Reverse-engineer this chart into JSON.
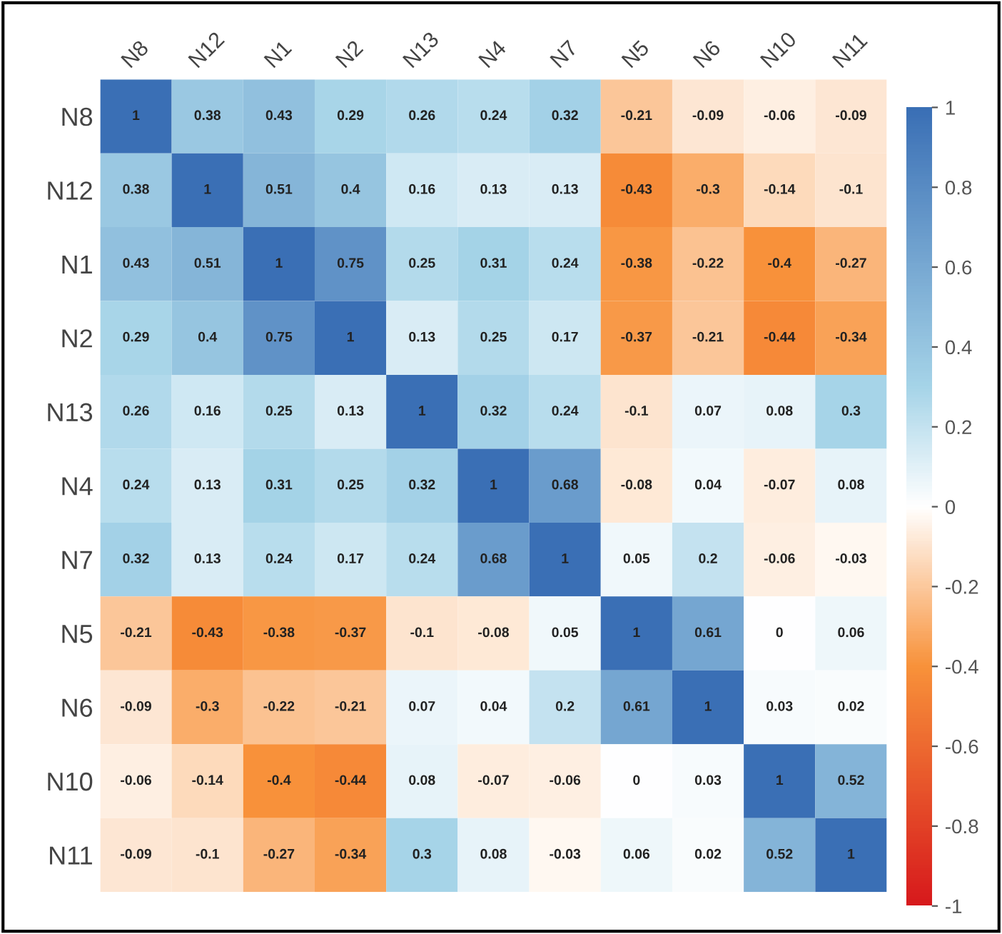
{
  "chart_data": {
    "type": "heatmap",
    "categories": [
      "N8",
      "N12",
      "N1",
      "N2",
      "N13",
      "N4",
      "N7",
      "N5",
      "N6",
      "N10",
      "N11"
    ],
    "y_categories": [
      "N8",
      "N12",
      "N1",
      "N2",
      "N13",
      "N4",
      "N7",
      "N5",
      "N6",
      "N10",
      "N11"
    ],
    "cells": [
      [
        1,
        0.38,
        0.43,
        0.29,
        0.26,
        0.24,
        0.32,
        -0.21,
        -0.09,
        -0.06,
        -0.09
      ],
      [
        0.38,
        1,
        0.51,
        0.4,
        0.16,
        0.13,
        0.13,
        -0.43,
        -0.3,
        -0.14,
        -0.1
      ],
      [
        0.43,
        0.51,
        1,
        0.75,
        0.25,
        0.31,
        0.24,
        -0.38,
        -0.22,
        -0.4,
        -0.27
      ],
      [
        0.29,
        0.4,
        0.75,
        1,
        0.13,
        0.25,
        0.17,
        -0.37,
        -0.21,
        -0.44,
        -0.34
      ],
      [
        0.26,
        0.16,
        0.25,
        0.13,
        1,
        0.32,
        0.24,
        -0.1,
        0.07,
        0.08,
        0.3
      ],
      [
        0.24,
        0.13,
        0.31,
        0.25,
        0.32,
        1,
        0.68,
        -0.08,
        0.04,
        -0.07,
        0.08
      ],
      [
        0.32,
        0.13,
        0.24,
        0.17,
        0.24,
        0.68,
        1,
        0.05,
        0.2,
        -0.06,
        -0.03
      ],
      [
        -0.21,
        -0.43,
        -0.38,
        -0.37,
        -0.1,
        -0.08,
        0.05,
        1,
        0.61,
        0,
        0.06
      ],
      [
        -0.09,
        -0.3,
        -0.22,
        -0.21,
        0.07,
        0.04,
        0.2,
        0.61,
        1,
        0.03,
        0.02
      ],
      [
        -0.06,
        -0.14,
        -0.4,
        -0.44,
        0.08,
        -0.07,
        -0.06,
        0,
        0.03,
        1,
        0.52
      ],
      [
        -0.09,
        -0.1,
        -0.27,
        -0.34,
        0.3,
        0.08,
        -0.03,
        0.06,
        0.02,
        0.52,
        1
      ]
    ],
    "clim": [
      -1,
      1
    ],
    "cticks": [
      -1,
      -0.8,
      -0.6,
      -0.4,
      -0.2,
      0,
      0.2,
      0.4,
      0.6,
      0.8,
      1
    ],
    "data_labels": true
  }
}
